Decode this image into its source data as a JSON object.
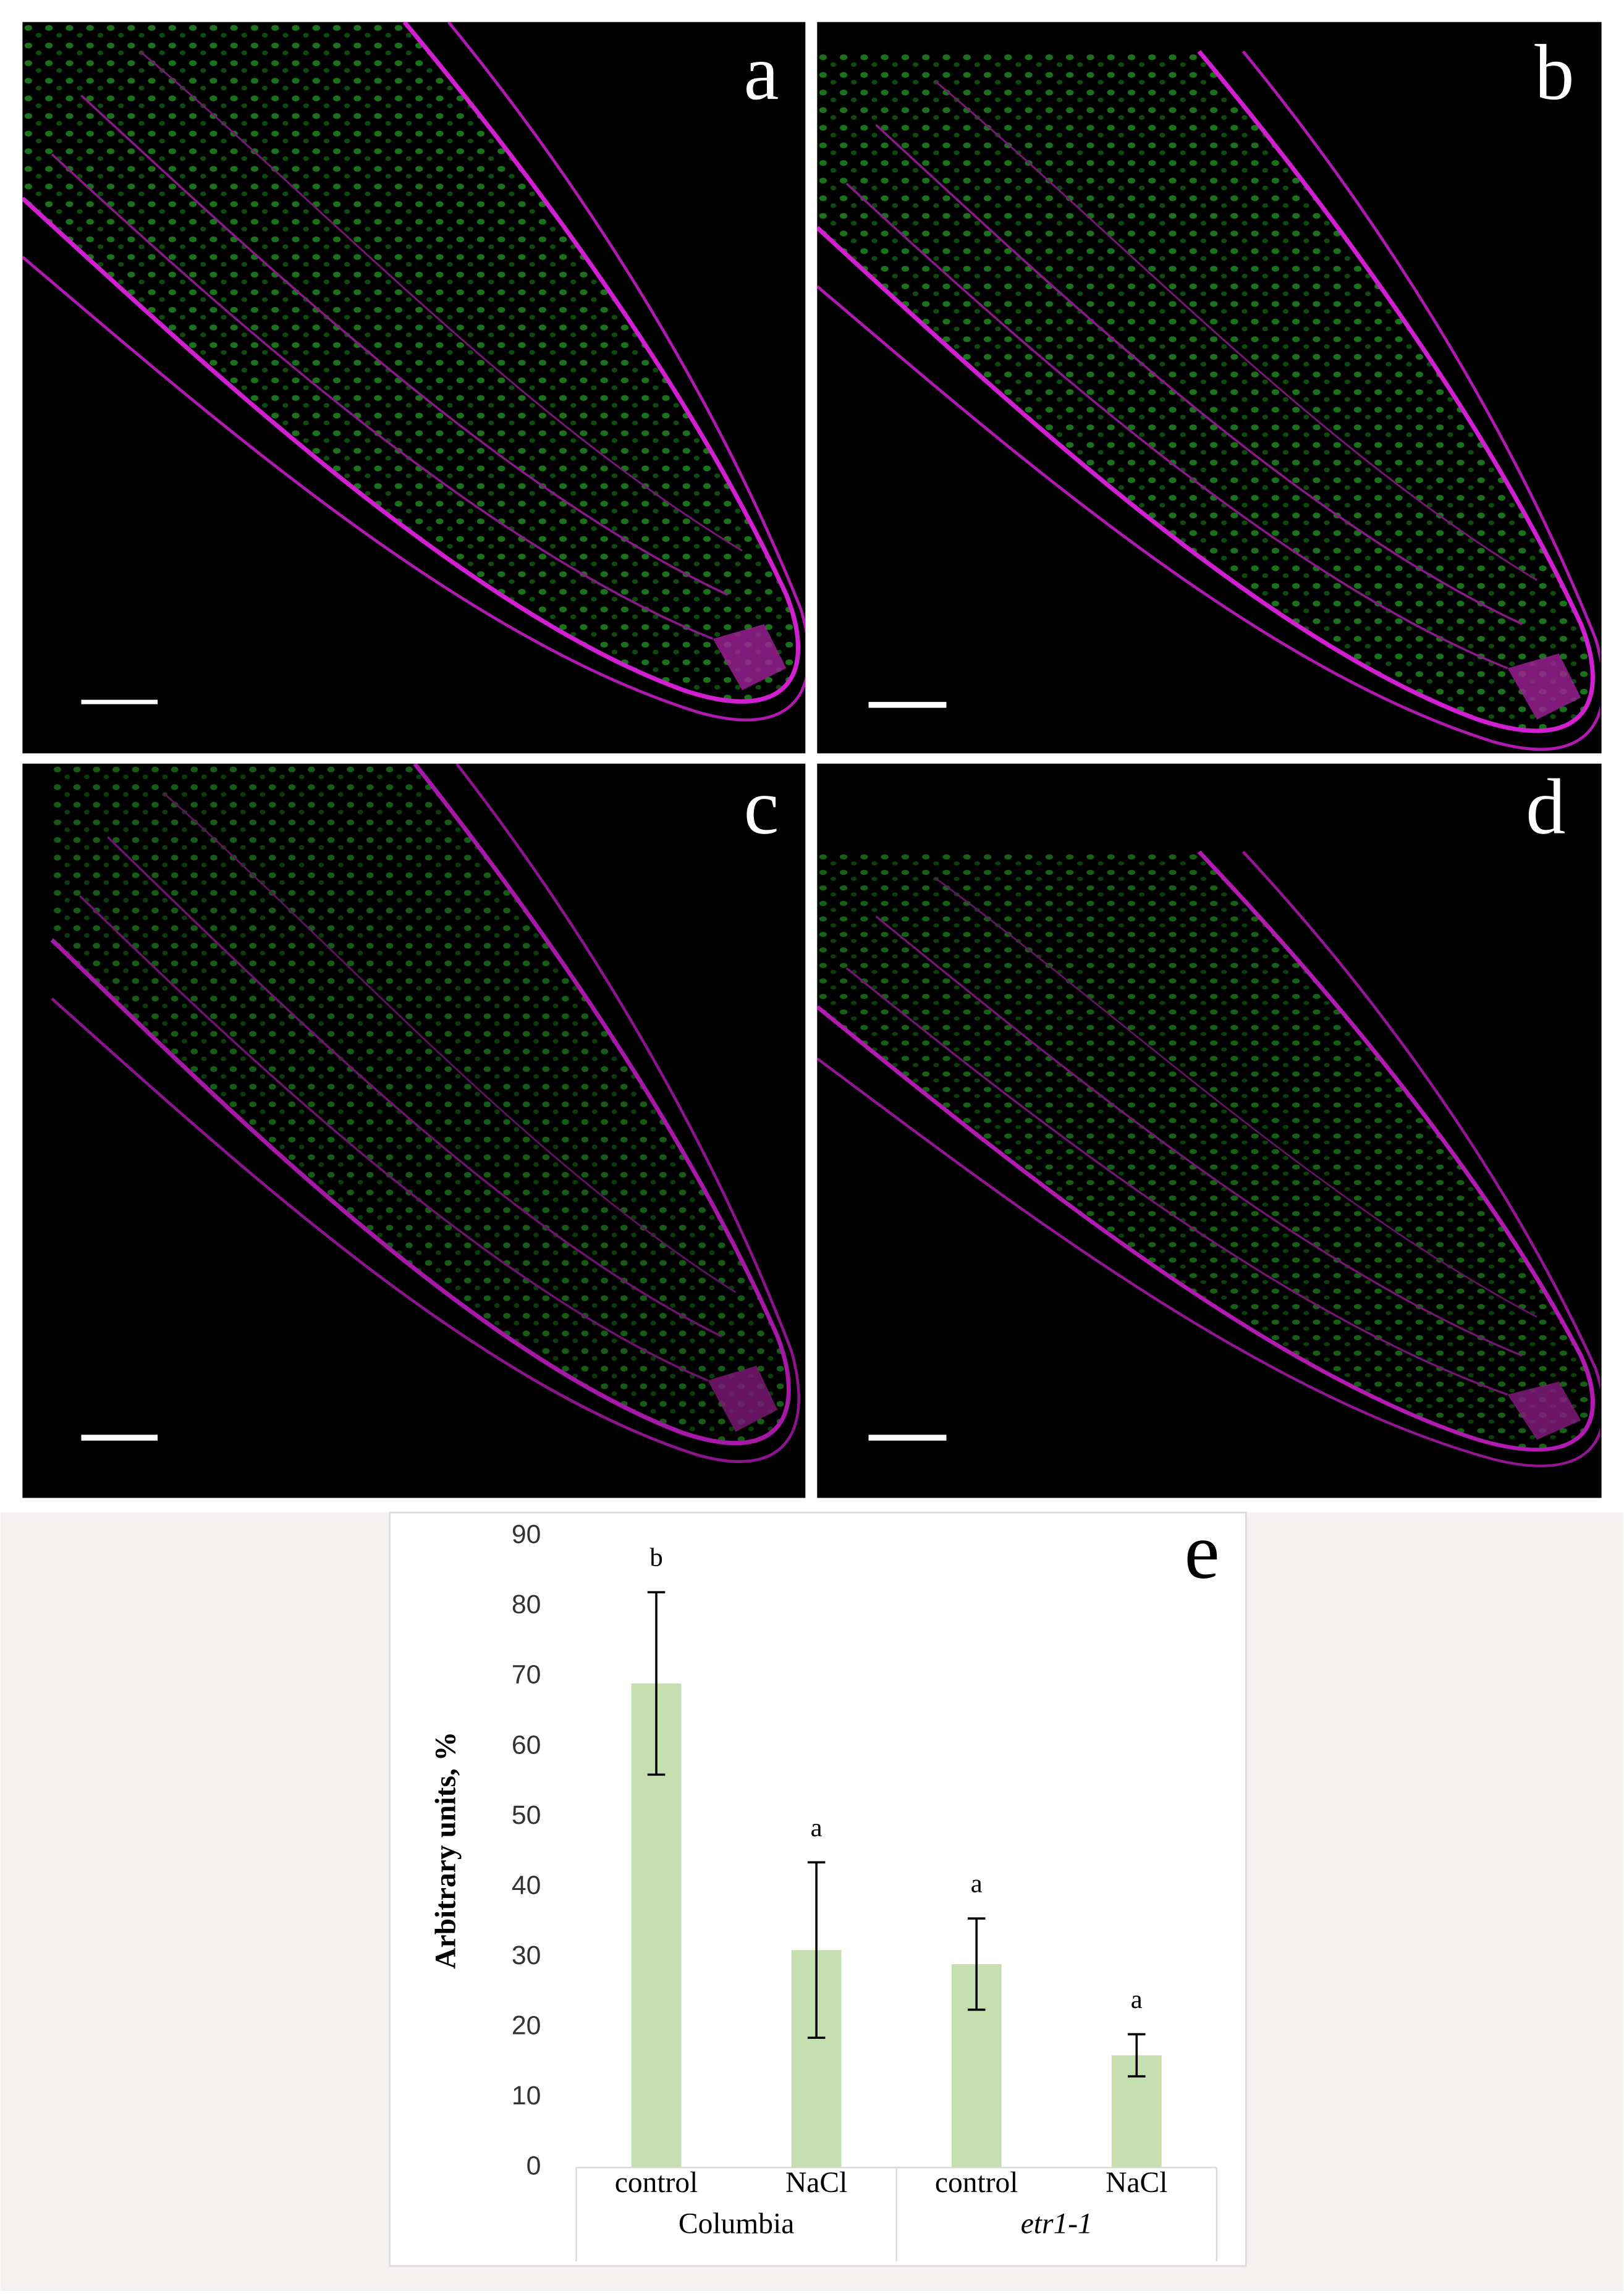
{
  "panels": [
    "a",
    "b",
    "c",
    "d"
  ],
  "chart_data": {
    "type": "bar",
    "panel_label": "e",
    "y_label": "Arbitrary units, %",
    "categories": [
      "control",
      "NaCl",
      "control",
      "NaCl"
    ],
    "groups": [
      "Columbia",
      "etr1-1"
    ],
    "series": [
      {
        "color": "#c5dfb0",
        "values": [
          69,
          31,
          29,
          16
        ],
        "errors": [
          13,
          12.5,
          6.5,
          3
        ]
      }
    ],
    "significance": [
      "b",
      "a",
      "a",
      "a"
    ],
    "ylim": [
      0,
      90
    ],
    "yticks": [
      0,
      10,
      20,
      30,
      40,
      50,
      60,
      70,
      80,
      90
    ]
  }
}
